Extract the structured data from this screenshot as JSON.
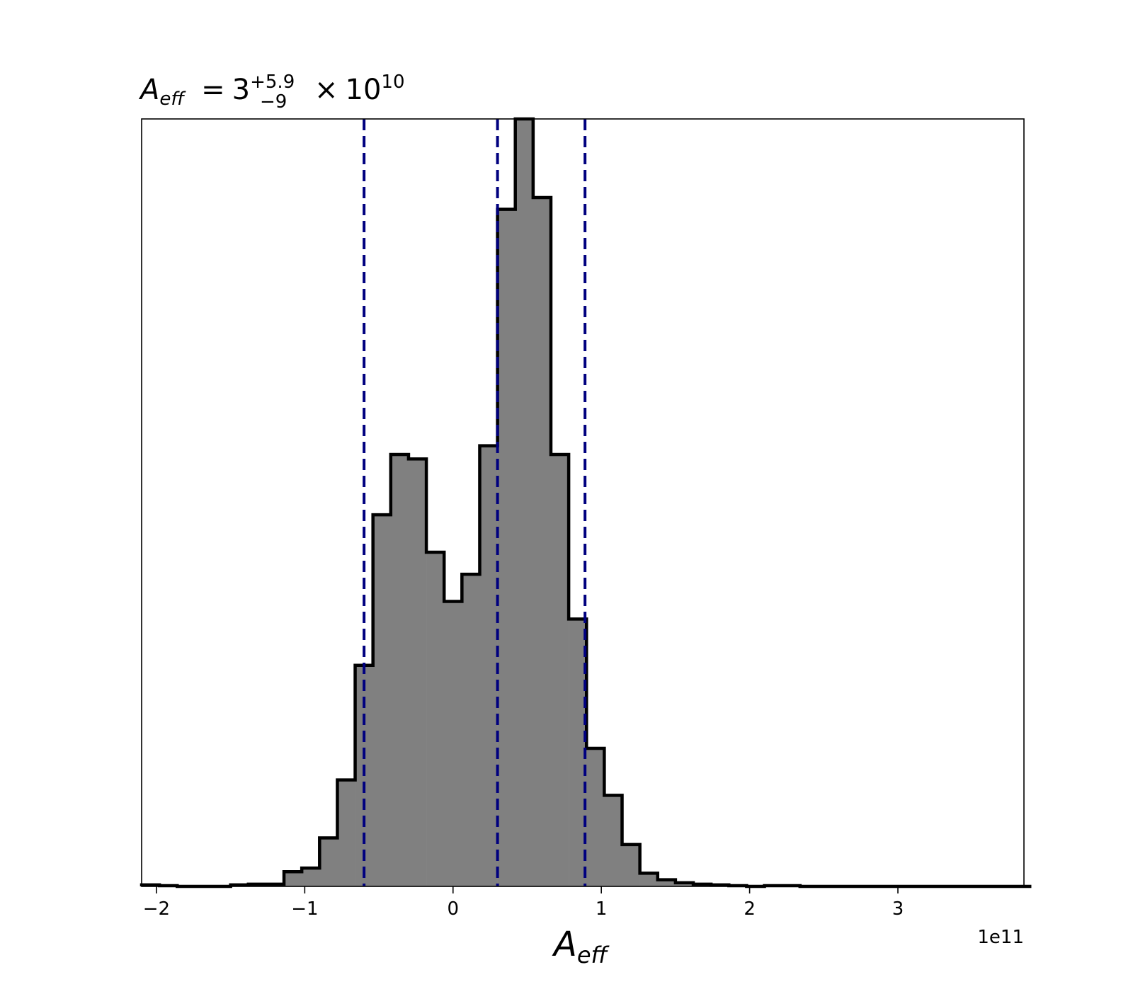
{
  "chart_data": {
    "type": "histogram",
    "title": {
      "symbol": "A",
      "symbol_subscript": "eff",
      "equals": "=",
      "median": "3",
      "upper": "+5.9",
      "lower": "−9",
      "times": "×",
      "base": "10",
      "exponent": "10"
    },
    "xlabel": {
      "symbol": "A",
      "subscript": "eff"
    },
    "x_offset_label": "1e11",
    "x_scale_factor": 100000000000,
    "xlim": [
      -2.1,
      3.85
    ],
    "ylim": [
      0,
      1045
    ],
    "x_ticks": [
      -2,
      -1,
      0,
      1,
      2,
      3
    ],
    "x_tick_labels": [
      "−2",
      "−1",
      "0",
      "1",
      "2",
      "3"
    ],
    "y_ticks_visible": false,
    "bin_edges": [
      -2.1,
      -1.98,
      -1.86,
      -1.74,
      -1.62,
      -1.5,
      -1.38,
      -1.26,
      -1.14,
      -1.02,
      -0.9,
      -0.78,
      -0.66,
      -0.54,
      -0.42,
      -0.3,
      -0.18,
      -0.06,
      0.06,
      0.18,
      0.3,
      0.42,
      0.54,
      0.66,
      0.78,
      0.9,
      1.02,
      1.14,
      1.26,
      1.38,
      1.5,
      1.62,
      1.74,
      1.86,
      1.98,
      2.1,
      2.22,
      2.34,
      2.46,
      2.58,
      2.7,
      2.82,
      2.94,
      3.06,
      3.18,
      3.3,
      3.42,
      3.54,
      3.66,
      3.78,
      3.9
    ],
    "counts": [
      2,
      1,
      0,
      0,
      0,
      2,
      3,
      3,
      20,
      25,
      66,
      145,
      301,
      506,
      588,
      582,
      455,
      388,
      425,
      600,
      922,
      1045,
      938,
      588,
      364,
      188,
      124,
      57,
      18,
      9,
      5,
      3,
      2,
      1,
      0,
      1,
      1,
      0,
      0,
      0,
      0,
      0,
      0,
      0,
      0,
      0,
      0,
      0,
      0,
      0
    ],
    "fill_color": "#808080",
    "edge_color": "#000000",
    "quantile_lines": [
      -0.6,
      0.3,
      0.89
    ],
    "quantile_line_color": "#00007f",
    "quantile_line_style": "dashed"
  }
}
